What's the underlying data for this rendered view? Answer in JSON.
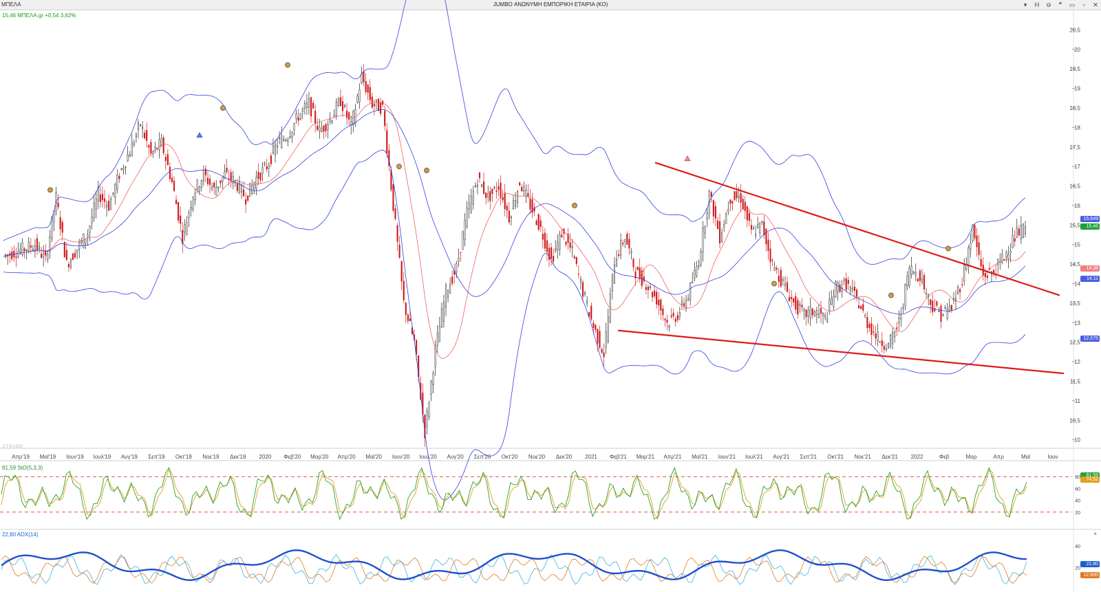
{
  "window": {
    "symbol": "ΜΠΕΛΑ",
    "title": "JUMBO ΑΝΩΝΥΜΗ ΕΜΠΟΡΙΚΗ ΕΤΑΙΡΙΑ (ΚΟ)",
    "buttons": [
      "▾",
      "H",
      "⊖",
      "❞",
      "▭",
      "▫",
      "✕"
    ]
  },
  "quote": "15,46 ΜΠΕΛΑ.gr +0,54 3,62%",
  "watermark": "ZTRADE",
  "price_axis": {
    "ticks": [
      "20,5",
      "20",
      "19,5",
      "19",
      "18,5",
      "18",
      "17,5",
      "17",
      "16,5",
      "16",
      "15,5",
      "15",
      "14,5",
      "14",
      "13,5",
      "13",
      "12,5",
      "12",
      "11,5",
      "11",
      "10,5",
      "10"
    ],
    "tags": [
      {
        "label": "15,649",
        "color": "#4a5fe0"
      },
      {
        "label": "15,46",
        "color": "#1fa03a"
      },
      {
        "label": "14,38",
        "color": "#f08080"
      },
      {
        "label": "14,11",
        "color": "#4a5fe0"
      },
      {
        "label": "12,575",
        "color": "#4a5fe0"
      }
    ]
  },
  "time_axis": [
    "Απρ'19",
    "Μαϊ'19",
    "Ιουν'19",
    "Ιουλ'19",
    "Αυγ'19",
    "Σεπ'19",
    "Οκτ'19",
    "Νοε'19",
    "Δεκ'19",
    "2020",
    "Φεβ'20",
    "Μαρ'20",
    "Απρ'20",
    "Μαϊ'20",
    "Ιουν'20",
    "Ιουλ'20",
    "Αυγ'20",
    "Σεπ'20",
    "Οκτ'20",
    "Νοε'20",
    "Δεκ'20",
    "2021",
    "Φεβ'21",
    "Μαρ'21",
    "Απρ'21",
    "Μαϊ'21",
    "Ιουν'21",
    "Ιουλ'21",
    "Αυγ'21",
    "Σεπ'21",
    "Οκτ'21",
    "Νοε'21",
    "Δεκ'21",
    "2022",
    "Φεβ",
    "Μαρ",
    "Απρ",
    "Μαϊ",
    "Ιουν"
  ],
  "stochastic": {
    "label": "81,59 StO(5,3,3)",
    "ticks": [
      "80",
      "60",
      "40",
      "20"
    ],
    "levels": [
      80,
      20
    ],
    "tags": [
      {
        "label": "81,59",
        "color": "#2aa02a"
      },
      {
        "label": "74,52",
        "color": "#e0a020"
      }
    ]
  },
  "adx": {
    "label": "22,80 ADX(14)",
    "ticks": [
      "40",
      "20"
    ],
    "tags": [
      {
        "label": "22,80",
        "color": "#1f5fd0"
      },
      {
        "label": "12,800",
        "color": "#e07a20"
      }
    ]
  },
  "chart_data": {
    "type": "line",
    "price_range": [
      9.8,
      21.0
    ],
    "close_series": [
      14.7,
      14.8,
      14.9,
      15.0,
      14.6,
      16.2,
      14.5,
      14.9,
      15.3,
      16.3,
      16.0,
      16.8,
      17.4,
      18.1,
      17.3,
      17.6,
      16.6,
      15.2,
      16.3,
      16.8,
      16.4,
      16.8,
      16.6,
      16.2,
      16.7,
      17.0,
      17.6,
      17.8,
      18.3,
      18.6,
      17.9,
      18.2,
      18.7,
      18.0,
      19.3,
      18.6,
      18.5,
      16.0,
      13.5,
      12.5,
      10.2,
      12.3,
      13.8,
      14.4,
      15.8,
      16.7,
      16.2,
      16.5,
      15.7,
      16.6,
      16.0,
      15.4,
      14.6,
      15.3,
      14.8,
      13.8,
      12.9,
      12.2,
      14.6,
      15.2,
      14.3,
      14.0,
      13.6,
      13.0,
      13.2,
      13.7,
      14.6,
      16.3,
      15.2,
      16.2,
      16.2,
      15.3,
      15.5,
      14.5,
      14.0,
      13.5,
      13.2,
      13.3,
      13.1,
      13.9,
      14.0,
      13.6,
      13.0,
      12.6,
      12.4,
      13.0,
      14.4,
      14.2,
      13.5,
      13.2,
      13.4,
      14.1,
      15.4,
      14.2,
      14.3,
      14.7,
      15.2,
      15.46
    ],
    "bollinger_upper_description": "Upper Bollinger band",
    "trendlines": [
      {
        "from": {
          "date": "Φεβ'21",
          "price": 17.1
        },
        "to": {
          "date": "Ιουν",
          "price": 13.7
        }
      },
      {
        "from": {
          "date": "Φεβ'21",
          "price": 12.8
        },
        "to": {
          "date": "Ιουν",
          "price": 11.7
        }
      }
    ]
  }
}
